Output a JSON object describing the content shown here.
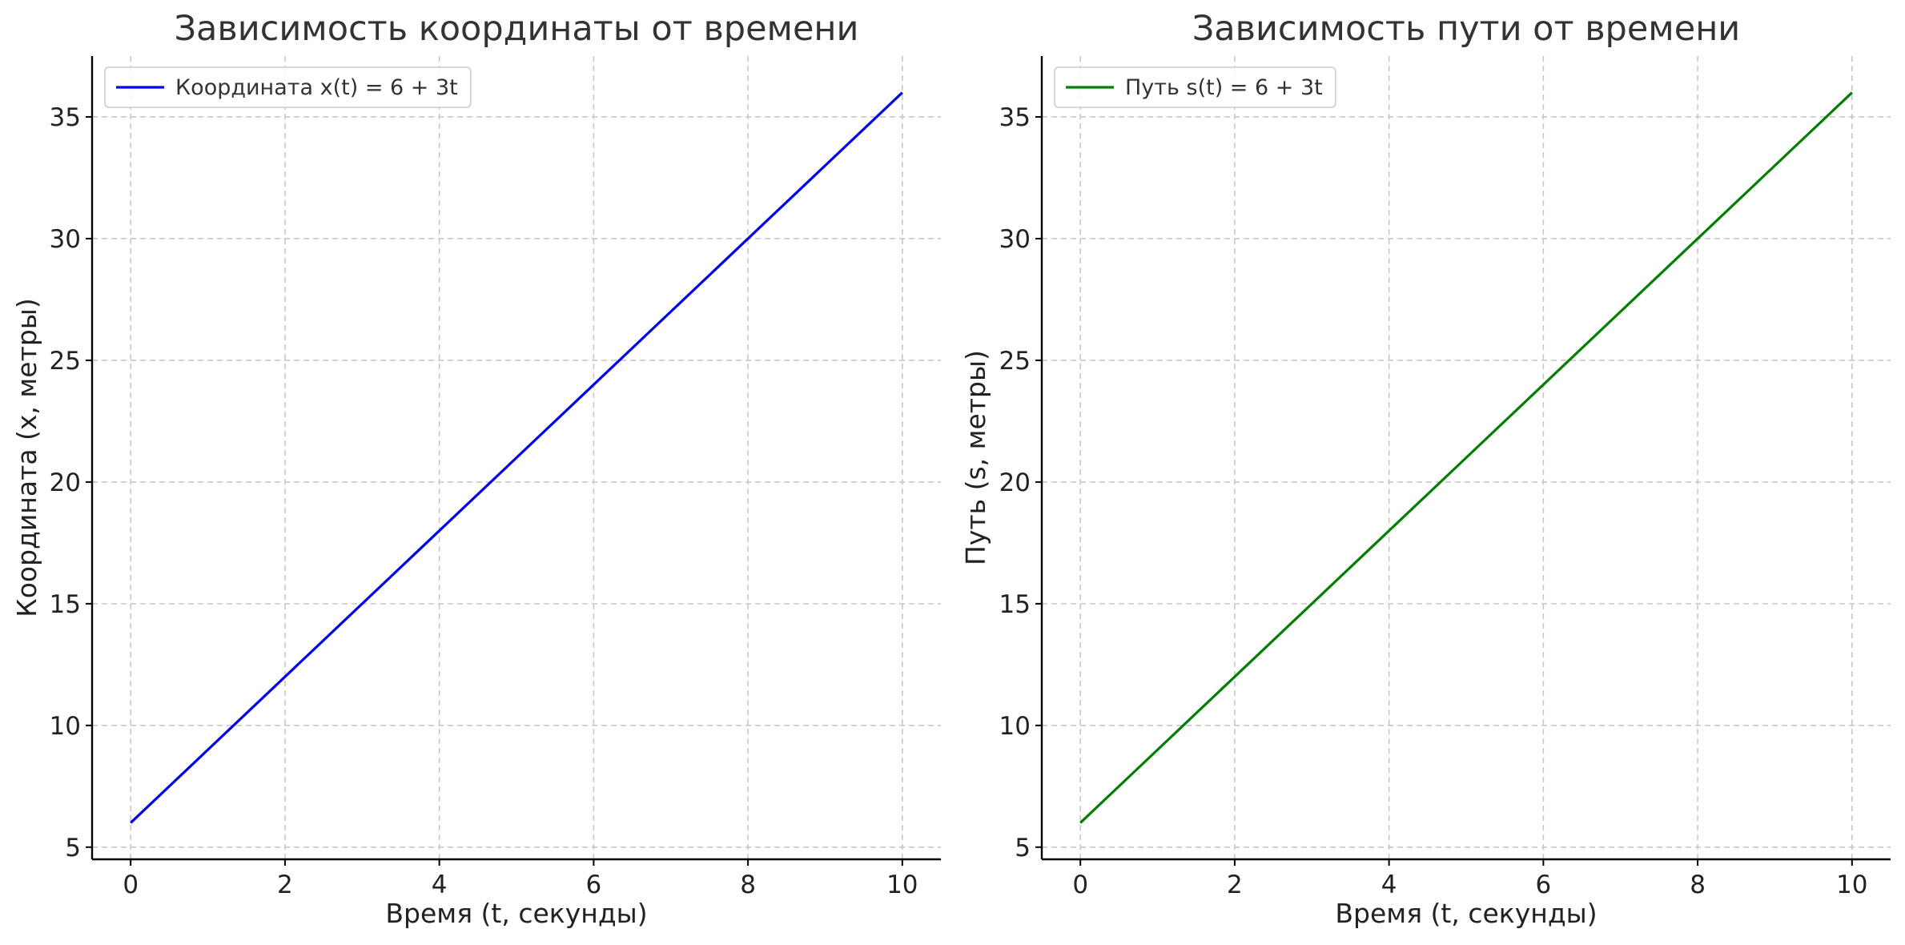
{
  "chart_data": [
    {
      "type": "line",
      "title": "Зависимость координаты от времени",
      "xlabel": "Время (t, секунды)",
      "ylabel": "Координата (x, метры)",
      "xlim": [
        -0.5,
        10.5
      ],
      "ylim": [
        4.5,
        37.5
      ],
      "xticks": [
        0,
        2,
        4,
        6,
        8,
        10
      ],
      "yticks": [
        5,
        10,
        15,
        20,
        25,
        30,
        35
      ],
      "grid": true,
      "legend_position": "top-left",
      "series": [
        {
          "name": "Координата x(t) = 6 + 3t",
          "color": "#0000ff",
          "x": [
            0,
            1,
            2,
            3,
            4,
            5,
            6,
            7,
            8,
            9,
            10
          ],
          "y": [
            6,
            9,
            12,
            15,
            18,
            21,
            24,
            27,
            30,
            33,
            36
          ]
        }
      ]
    },
    {
      "type": "line",
      "title": "Зависимость пути от времени",
      "xlabel": "Время (t, секунды)",
      "ylabel": "Путь (s, метры)",
      "xlim": [
        -0.5,
        10.5
      ],
      "ylim": [
        4.5,
        37.5
      ],
      "xticks": [
        0,
        2,
        4,
        6,
        8,
        10
      ],
      "yticks": [
        5,
        10,
        15,
        20,
        25,
        30,
        35
      ],
      "grid": true,
      "legend_position": "top-left",
      "series": [
        {
          "name": "Путь s(t) = 6 + 3t",
          "color": "#008000",
          "x": [
            0,
            1,
            2,
            3,
            4,
            5,
            6,
            7,
            8,
            9,
            10
          ],
          "y": [
            6,
            9,
            12,
            15,
            18,
            21,
            24,
            27,
            30,
            33,
            36
          ]
        }
      ]
    }
  ]
}
